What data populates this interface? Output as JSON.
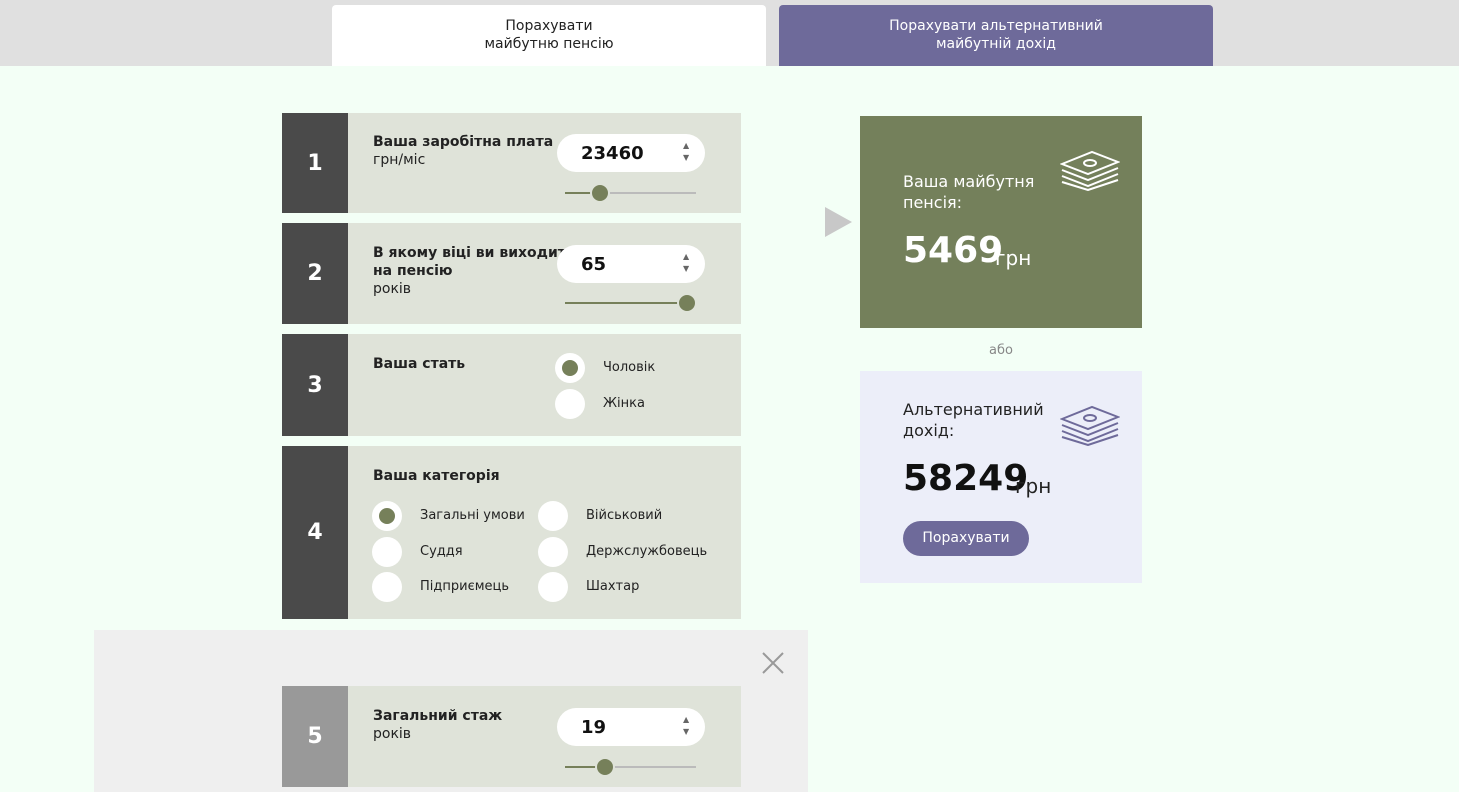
{
  "tabs": [
    {
      "lines": [
        "Порахувати",
        "майбутню пенсію"
      ]
    },
    {
      "lines": [
        "Порахувати альтернативний",
        "майбутній дохід"
      ]
    }
  ],
  "steps": [
    {
      "number": "1",
      "label": [
        "Ваша заробітна плата"
      ],
      "unit": "грн/міс",
      "input": "23460"
    },
    {
      "number": "2",
      "label": [
        "В якому віці ви виходите",
        "на пенсію"
      ],
      "unit": "років",
      "input": "65"
    },
    {
      "number": "3",
      "label": [
        "Ваша стать"
      ],
      "options": [
        "Чоловік",
        "Жінка"
      ]
    },
    {
      "number": "4",
      "label": [
        "Ваша категорія"
      ],
      "options": [
        "Загальні умови",
        "Військовий",
        "Суддя",
        "Держслужбовець",
        "Підприємець",
        "Шахтар"
      ]
    },
    {
      "number": "5",
      "label": [
        "Загальний стаж"
      ],
      "unit": "років",
      "input": "19"
    }
  ],
  "pension": {
    "title_lines": [
      "Ваша майбутня",
      "пенсія:"
    ],
    "amount": "5469",
    "currency": "грн"
  },
  "or": "або",
  "alternative": {
    "title_lines": [
      "Альтернативний",
      "дохід:"
    ],
    "amount": "58249",
    "currency": "грн",
    "button": "Порахувати"
  }
}
